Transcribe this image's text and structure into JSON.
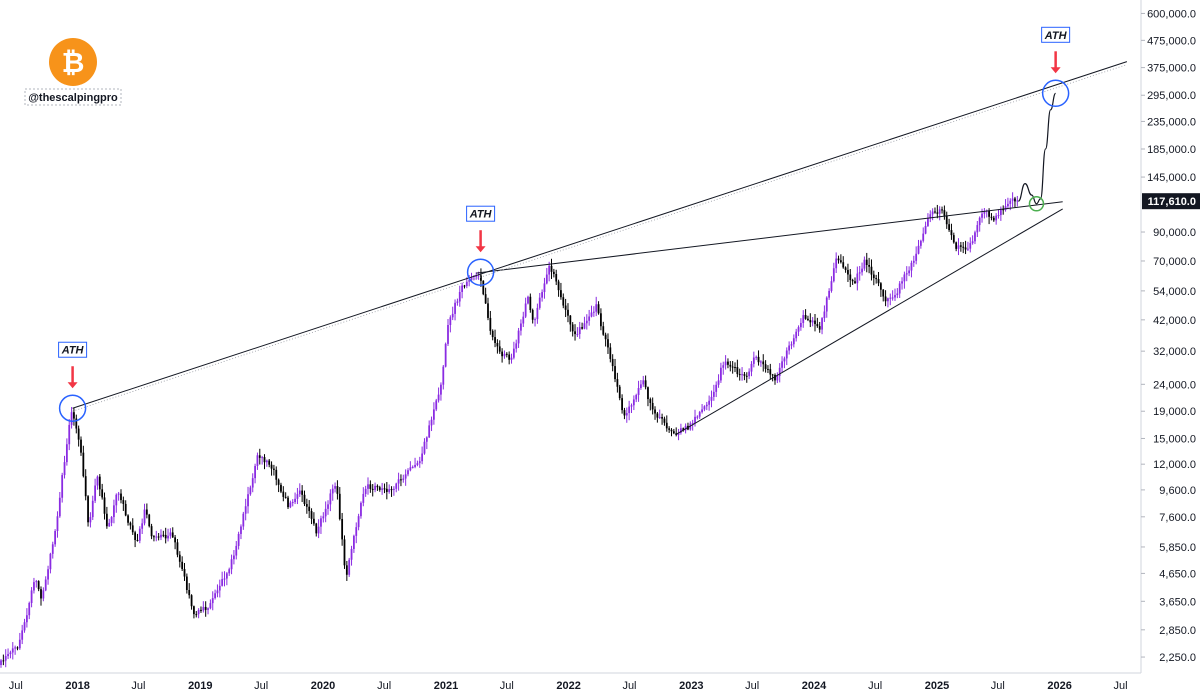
{
  "branding": {
    "logo_icon": "bitcoin-logo-icon",
    "logo_glyph": "₿",
    "logo_color": "#F7931A",
    "handle": "@thescalpingpro"
  },
  "colors": {
    "bull": "#8a2be2",
    "bear": "#000000",
    "trendline": "#131722",
    "circle": "#2962ff",
    "circle_green": "#4caf50",
    "arrow": "#f23645",
    "price_tag_bg": "#131722"
  },
  "chart_data": {
    "type": "candlestick",
    "title": "",
    "xlabel": "",
    "ylabel": "",
    "scale": "log",
    "ylim": [
      2100,
      640000
    ],
    "xlim": [
      "2017-05-15",
      "2026-08-31"
    ],
    "grid": false,
    "y_ticks": [
      {
        "value": 600000,
        "label": "600,000.0"
      },
      {
        "value": 475000,
        "label": "475,000.0"
      },
      {
        "value": 375000,
        "label": "375,000.0"
      },
      {
        "value": 295000,
        "label": "295,000.0"
      },
      {
        "value": 235000,
        "label": "235,000.0"
      },
      {
        "value": 185000,
        "label": "185,000.0"
      },
      {
        "value": 145000,
        "label": "145,000.0"
      },
      {
        "value": 90000,
        "label": "90,000.0"
      },
      {
        "value": 70000,
        "label": "70,000.0"
      },
      {
        "value": 54000,
        "label": "54,000.0"
      },
      {
        "value": 42000,
        "label": "42,000.0"
      },
      {
        "value": 32000,
        "label": "32,000.0"
      },
      {
        "value": 24000,
        "label": "24,000.0"
      },
      {
        "value": 19000,
        "label": "19,000.0"
      },
      {
        "value": 15000,
        "label": "15,000.0"
      },
      {
        "value": 12000,
        "label": "12,000.0"
      },
      {
        "value": 9600,
        "label": "9,600.0"
      },
      {
        "value": 7600,
        "label": "7,600.0"
      },
      {
        "value": 5850,
        "label": "5,850.0"
      },
      {
        "value": 4650,
        "label": "4,650.0"
      },
      {
        "value": 3650,
        "label": "3,650.0"
      },
      {
        "value": 2850,
        "label": "2,850.0"
      },
      {
        "value": 2250,
        "label": "2,250.0"
      }
    ],
    "x_ticks": [
      {
        "date": "2017-07-01",
        "label": "Jul",
        "year": false
      },
      {
        "date": "2018-01-01",
        "label": "2018",
        "year": true
      },
      {
        "date": "2018-07-01",
        "label": "Jul",
        "year": false
      },
      {
        "date": "2019-01-01",
        "label": "2019",
        "year": true
      },
      {
        "date": "2019-07-01",
        "label": "Jul",
        "year": false
      },
      {
        "date": "2020-01-01",
        "label": "2020",
        "year": true
      },
      {
        "date": "2020-07-01",
        "label": "Jul",
        "year": false
      },
      {
        "date": "2021-01-01",
        "label": "2021",
        "year": true
      },
      {
        "date": "2021-07-01",
        "label": "Jul",
        "year": false
      },
      {
        "date": "2022-01-01",
        "label": "2022",
        "year": true
      },
      {
        "date": "2022-07-01",
        "label": "Jul",
        "year": false
      },
      {
        "date": "2023-01-01",
        "label": "2023",
        "year": true
      },
      {
        "date": "2023-07-01",
        "label": "Jul",
        "year": false
      },
      {
        "date": "2024-01-01",
        "label": "2024",
        "year": true
      },
      {
        "date": "2024-07-01",
        "label": "Jul",
        "year": false
      },
      {
        "date": "2025-01-01",
        "label": "2025",
        "year": true
      },
      {
        "date": "2025-07-01",
        "label": "Jul",
        "year": false
      },
      {
        "date": "2026-01-01",
        "label": "2026",
        "year": true
      },
      {
        "date": "2026-07-01",
        "label": "Jul",
        "year": false
      }
    ],
    "current_price": {
      "value": 117610,
      "label": "117,610.0"
    },
    "price_path": [
      [
        "2017-05-15",
        2100
      ],
      [
        "2017-07-15",
        2500
      ],
      [
        "2017-09-01",
        4500
      ],
      [
        "2017-09-20",
        3700
      ],
      [
        "2017-11-01",
        7000
      ],
      [
        "2017-12-17",
        19500
      ],
      [
        "2018-01-15",
        13500
      ],
      [
        "2018-02-06",
        7000
      ],
      [
        "2018-03-05",
        11000
      ],
      [
        "2018-04-05",
        6800
      ],
      [
        "2018-05-05",
        9500
      ],
      [
        "2018-06-29",
        6000
      ],
      [
        "2018-07-25",
        8200
      ],
      [
        "2018-08-15",
        6300
      ],
      [
        "2018-10-15",
        6500
      ],
      [
        "2018-11-20",
        4400
      ],
      [
        "2018-12-15",
        3300
      ],
      [
        "2019-02-01",
        3450
      ],
      [
        "2019-04-10",
        5200
      ],
      [
        "2019-06-26",
        13000
      ],
      [
        "2019-08-06",
        11800
      ],
      [
        "2019-09-25",
        8200
      ],
      [
        "2019-10-26",
        9700
      ],
      [
        "2019-12-17",
        6700
      ],
      [
        "2020-02-13",
        10300
      ],
      [
        "2020-03-13",
        4500
      ],
      [
        "2020-05-08",
        9900
      ],
      [
        "2020-07-25",
        9600
      ],
      [
        "2020-10-20",
        12500
      ],
      [
        "2020-12-25",
        25000
      ],
      [
        "2021-01-10",
        40000
      ],
      [
        "2021-02-21",
        56000
      ],
      [
        "2021-04-14",
        63500
      ],
      [
        "2021-05-19",
        37000
      ],
      [
        "2021-06-22",
        31000
      ],
      [
        "2021-07-20",
        30000
      ],
      [
        "2021-09-06",
        51000
      ],
      [
        "2021-09-21",
        40500
      ],
      [
        "2021-11-10",
        68000
      ],
      [
        "2022-01-22",
        36000
      ],
      [
        "2022-03-28",
        47000
      ],
      [
        "2022-05-12",
        29000
      ],
      [
        "2022-06-18",
        18000
      ],
      [
        "2022-08-14",
        24500
      ],
      [
        "2022-09-10",
        19500
      ],
      [
        "2022-11-09",
        15500
      ],
      [
        "2022-12-30",
        16600
      ],
      [
        "2023-03-12",
        22000
      ],
      [
        "2023-04-14",
        30000
      ],
      [
        "2023-06-15",
        25000
      ],
      [
        "2023-07-13",
        31000
      ],
      [
        "2023-09-11",
        25000
      ],
      [
        "2023-12-05",
        44000
      ],
      [
        "2024-01-23",
        39000
      ],
      [
        "2024-03-14",
        73000
      ],
      [
        "2024-05-01",
        57000
      ],
      [
        "2024-06-05",
        71000
      ],
      [
        "2024-08-05",
        50000
      ],
      [
        "2024-09-06",
        53000
      ],
      [
        "2024-10-29",
        72000
      ],
      [
        "2024-12-17",
        106000
      ],
      [
        "2025-01-20",
        108000
      ],
      [
        "2025-02-28",
        80000
      ],
      [
        "2025-04-08",
        76000
      ],
      [
        "2025-05-22",
        110000
      ],
      [
        "2025-06-22",
        99000
      ],
      [
        "2025-08-14",
        120000
      ],
      [
        "2025-08-31",
        117610
      ]
    ],
    "annotations": [
      {
        "text": "ATH",
        "type": "circle-arrow",
        "date": "2017-12-17",
        "value": 19500
      },
      {
        "text": "ATH",
        "type": "circle-arrow",
        "date": "2021-04-14",
        "value": 63500
      },
      {
        "text": "ATH",
        "type": "circle-arrow",
        "date": "2025-12-20",
        "value": 300000
      }
    ],
    "trendlines": [
      {
        "from": [
          "2017-12-17",
          19500
        ],
        "to": [
          "2026-07-20",
          395000
        ]
      },
      {
        "from": [
          "2021-04-01",
          63000
        ],
        "to": [
          "2026-01-10",
          117000
        ]
      },
      {
        "from": [
          "2022-11-15",
          15500
        ],
        "to": [
          "2026-01-10",
          110000
        ]
      }
    ],
    "projection": [
      [
        "2025-08-31",
        117610
      ],
      [
        "2025-09-20",
        137000
      ],
      [
        "2025-10-10",
        124000
      ],
      [
        "2025-10-24",
        115000
      ],
      [
        "2025-11-05",
        120000
      ],
      [
        "2025-11-20",
        185000
      ],
      [
        "2025-12-05",
        260000
      ],
      [
        "2025-12-20",
        300000
      ]
    ],
    "breakout_marker": {
      "date": "2025-10-24",
      "value": 115000
    }
  }
}
